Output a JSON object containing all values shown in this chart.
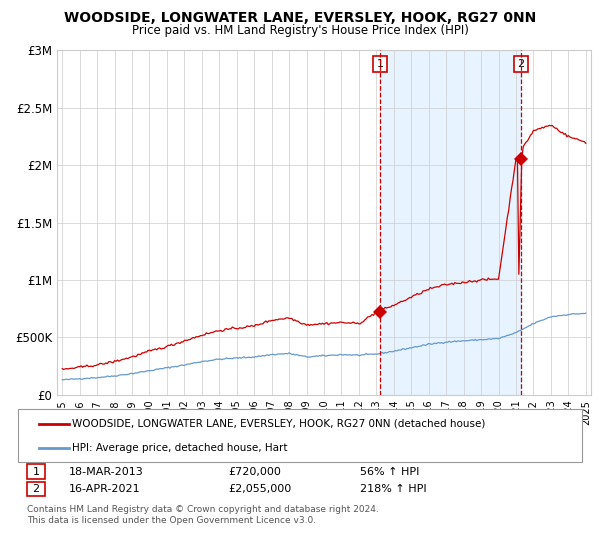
{
  "title": "WOODSIDE, LONGWATER LANE, EVERSLEY, HOOK, RG27 0NN",
  "subtitle": "Price paid vs. HM Land Registry's House Price Index (HPI)",
  "legend_line1": "WOODSIDE, LONGWATER LANE, EVERSLEY, HOOK, RG27 0NN (detached house)",
  "legend_line2": "HPI: Average price, detached house, Hart",
  "annotation1_label": "1",
  "annotation1_date": "18-MAR-2013",
  "annotation1_price": "£720,000",
  "annotation1_hpi": "56% ↑ HPI",
  "annotation2_label": "2",
  "annotation2_date": "16-APR-2021",
  "annotation2_price": "£2,055,000",
  "annotation2_hpi": "218% ↑ HPI",
  "footer": "Contains HM Land Registry data © Crown copyright and database right 2024.\nThis data is licensed under the Open Government Licence v3.0.",
  "red_color": "#cc0000",
  "blue_color": "#6699cc",
  "bg_color": "#ddeeff",
  "grid_color": "#cccccc",
  "ylim": [
    0,
    3000000
  ],
  "yticks": [
    0,
    500000,
    1000000,
    1500000,
    2000000,
    2500000,
    3000000
  ],
  "ytick_labels": [
    "£0",
    "£500K",
    "£1M",
    "£1.5M",
    "£2M",
    "£2.5M",
    "£3M"
  ],
  "purchase1_year": 2013.21,
  "purchase1_value": 720000,
  "purchase2_year": 2021.29,
  "purchase2_value": 2055000,
  "xstart": 1995,
  "xend": 2025,
  "hpi_base": [
    130000,
    140000,
    150000,
    165000,
    185000,
    210000,
    235000,
    260000,
    290000,
    310000,
    320000,
    330000,
    350000,
    360000,
    330000,
    340000,
    350000,
    345000,
    355000,
    380000,
    410000,
    440000,
    460000,
    470000,
    480000,
    490000,
    540000,
    620000,
    680000,
    700000,
    710000
  ],
  "red_base": [
    220000,
    240000,
    260000,
    290000,
    330000,
    380000,
    420000,
    470000,
    520000,
    560000,
    580000,
    600000,
    650000,
    670000,
    610000,
    620000,
    630000,
    620000,
    720000,
    780000,
    850000,
    920000,
    960000,
    980000,
    1000000,
    1010000,
    2055000,
    2300000,
    2350000,
    2250000,
    2200000
  ]
}
